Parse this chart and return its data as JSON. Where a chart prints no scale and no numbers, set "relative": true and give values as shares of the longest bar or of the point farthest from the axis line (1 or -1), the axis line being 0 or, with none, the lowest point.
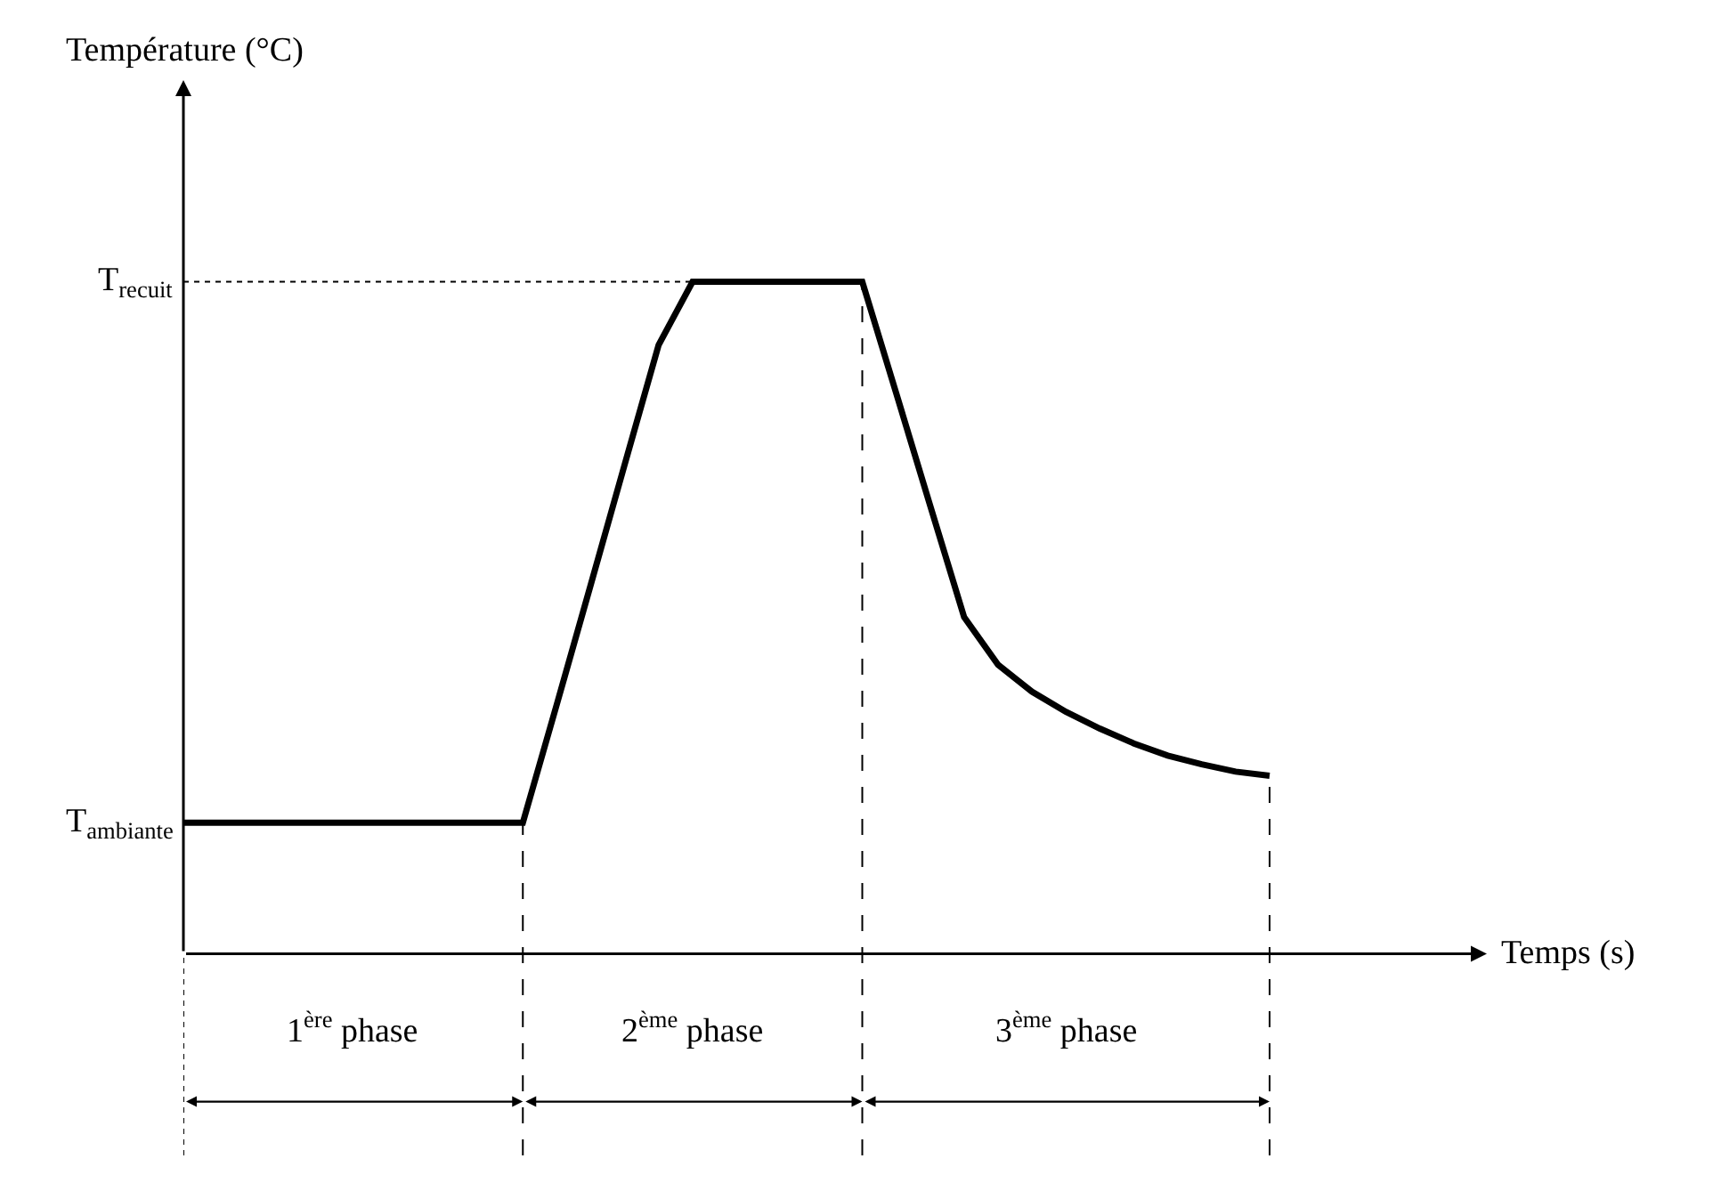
{
  "chart_data": {
    "type": "line",
    "relative": true,
    "categories": [
      null,
      null,
      null,
      null,
      null,
      null,
      null,
      null,
      null,
      null,
      null,
      null,
      null,
      null,
      null,
      null,
      null,
      null,
      null,
      null,
      null,
      null,
      null,
      null,
      null,
      null,
      null,
      null,
      null,
      null,
      null,
      null,
      null
    ],
    "series": [
      {
        "color": "#000000",
        "values": [
          0.195,
          0.195,
          0.195,
          0.195,
          0.195,
          0.195,
          0.195,
          0.195,
          0.195,
          0.195,
          0.195,
          0.371,
          0.549,
          0.728,
          0.906,
          1,
          1,
          1,
          1,
          1,
          1,
          0.834,
          0.667,
          0.501,
          0.43,
          0.39,
          0.36,
          0.335,
          0.313,
          0.295,
          0.282,
          0.271,
          0.265
        ]
      }
    ],
    "line_style": "solid",
    "ref_lines": [
      {
        "axis": "y",
        "value": 1,
        "label": "T$_{recuit}$",
        "line_style": "dotted"
      }
    ],
    "annotations": [
      "Température (°C)",
      "Temps (s)",
      "1$^{ère}$ phase",
      "2$^{ème}$ phase",
      "3$^{ème}$ phase",
      "T$_{ambiante}$"
    ]
  }
}
